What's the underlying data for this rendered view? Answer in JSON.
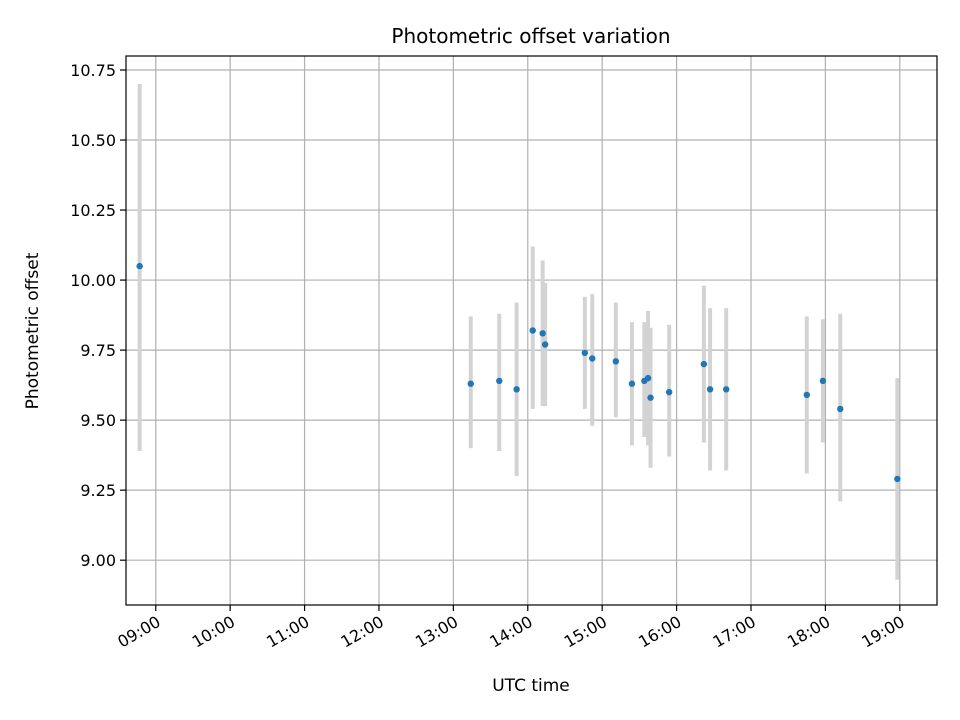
{
  "chart_data": {
    "type": "scatter",
    "title": "Photometric offset variation",
    "xlabel": "UTC time",
    "ylabel": "Photometric offset",
    "x_ticks": [
      "09:00",
      "10:00",
      "11:00",
      "12:00",
      "13:00",
      "14:00",
      "15:00",
      "16:00",
      "17:00",
      "18:00",
      "19:00"
    ],
    "y_ticks": [
      "9.00",
      "9.25",
      "9.50",
      "9.75",
      "10.00",
      "10.25",
      "10.50",
      "10.75"
    ],
    "xlim": [
      "08:36",
      "19:30"
    ],
    "ylim": [
      8.84,
      10.8
    ],
    "grid": true,
    "colors": {
      "marker": "#1f77b4",
      "errorbar": "#d3d3d3",
      "grid": "#b0b0b0"
    },
    "points": [
      {
        "x": "08:47",
        "y": 10.05,
        "lo": 9.39,
        "hi": 10.7
      },
      {
        "x": "13:14",
        "y": 9.63,
        "lo": 9.4,
        "hi": 9.87
      },
      {
        "x": "13:37",
        "y": 9.64,
        "lo": 9.39,
        "hi": 9.88
      },
      {
        "x": "13:51",
        "y": 9.61,
        "lo": 9.3,
        "hi": 9.92
      },
      {
        "x": "14:04",
        "y": 9.82,
        "lo": 9.54,
        "hi": 10.12
      },
      {
        "x": "14:12",
        "y": 9.81,
        "lo": 9.55,
        "hi": 10.07
      },
      {
        "x": "14:14",
        "y": 9.77,
        "lo": 9.55,
        "hi": 9.99
      },
      {
        "x": "14:46",
        "y": 9.74,
        "lo": 9.54,
        "hi": 9.94
      },
      {
        "x": "14:52",
        "y": 9.72,
        "lo": 9.48,
        "hi": 9.95
      },
      {
        "x": "15:11",
        "y": 9.71,
        "lo": 9.51,
        "hi": 9.92
      },
      {
        "x": "15:24",
        "y": 9.63,
        "lo": 9.41,
        "hi": 9.85
      },
      {
        "x": "15:34",
        "y": 9.64,
        "lo": 9.44,
        "hi": 9.85
      },
      {
        "x": "15:37",
        "y": 9.65,
        "lo": 9.41,
        "hi": 9.89
      },
      {
        "x": "15:39",
        "y": 9.58,
        "lo": 9.33,
        "hi": 9.83
      },
      {
        "x": "15:54",
        "y": 9.6,
        "lo": 9.37,
        "hi": 9.84
      },
      {
        "x": "16:22",
        "y": 9.7,
        "lo": 9.42,
        "hi": 9.98
      },
      {
        "x": "16:27",
        "y": 9.61,
        "lo": 9.32,
        "hi": 9.9
      },
      {
        "x": "16:40",
        "y": 9.61,
        "lo": 9.32,
        "hi": 9.9
      },
      {
        "x": "17:45",
        "y": 9.59,
        "lo": 9.31,
        "hi": 9.87
      },
      {
        "x": "17:58",
        "y": 9.64,
        "lo": 9.42,
        "hi": 9.86
      },
      {
        "x": "18:12",
        "y": 9.54,
        "lo": 9.21,
        "hi": 9.88
      },
      {
        "x": "18:58",
        "y": 9.29,
        "lo": 8.93,
        "hi": 9.65
      }
    ]
  }
}
